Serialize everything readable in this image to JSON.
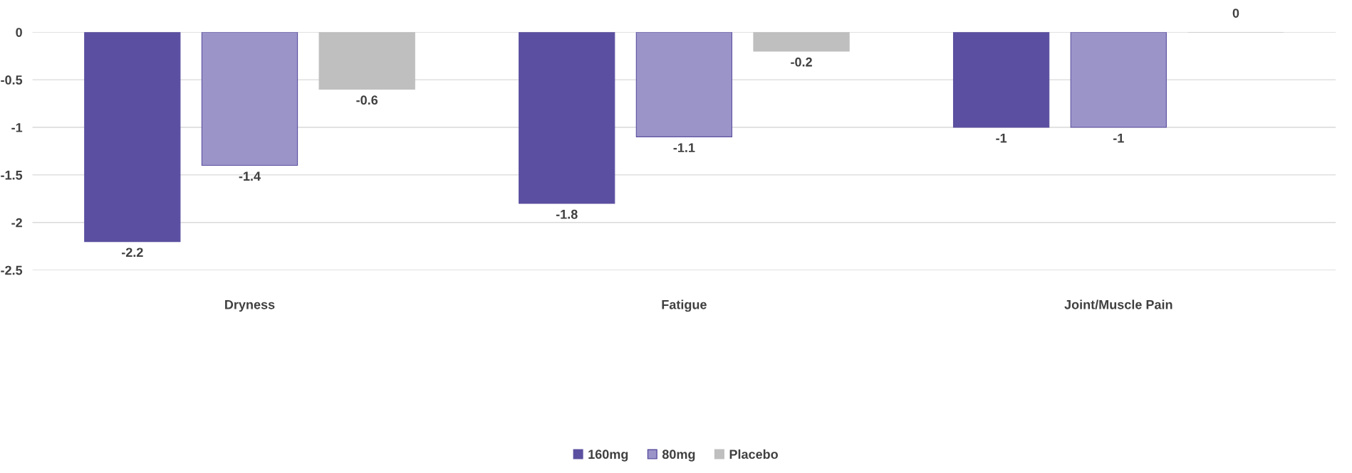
{
  "chart_data": {
    "type": "bar",
    "categories": [
      "Dryness",
      "Fatigue",
      "Joint/Muscle Pain"
    ],
    "series": [
      {
        "name": "160mg",
        "color": "#5a4fa0",
        "values": [
          -2.2,
          -1.8,
          -1
        ]
      },
      {
        "name": "80mg",
        "color": "#9b94c9",
        "values": [
          -1.4,
          -1.1,
          -1
        ]
      },
      {
        "name": "Placebo",
        "color": "#bfbfbf",
        "values": [
          -0.6,
          -0.2,
          0
        ]
      }
    ],
    "ylim": [
      -2.5,
      0
    ],
    "yticks": [
      0,
      -0.5,
      -1,
      -1.5,
      -2,
      -2.5
    ],
    "grid": "y",
    "legend": "bottom",
    "data_labels": true
  }
}
